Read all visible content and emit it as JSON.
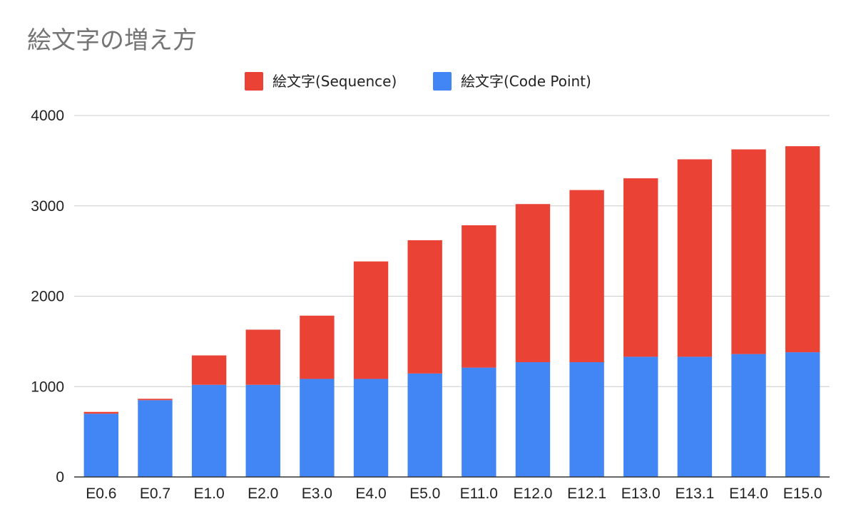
{
  "chart_data": {
    "type": "bar",
    "stacked": true,
    "title": "絵文字の増え方",
    "xlabel": "",
    "ylabel": "",
    "ylim": [
      0,
      4000
    ],
    "yticks": [
      0,
      1000,
      2000,
      3000,
      4000
    ],
    "grid": true,
    "legend_position": "top",
    "categories": [
      "E0.6",
      "E0.7",
      "E1.0",
      "E2.0",
      "E3.0",
      "E4.0",
      "E5.0",
      "E11.0",
      "E12.0",
      "E12.1",
      "E13.0",
      "E13.1",
      "E14.0",
      "E15.0"
    ],
    "series": [
      {
        "name": "絵文字(Sequence)",
        "color": "#ea4335",
        "values": [
          20,
          15,
          325,
          610,
          700,
          1300,
          1475,
          1575,
          1750,
          1905,
          1975,
          2185,
          2265,
          2280
        ]
      },
      {
        "name": "絵文字(Code Point)",
        "color": "#4285f4",
        "values": [
          700,
          850,
          1020,
          1020,
          1085,
          1085,
          1145,
          1210,
          1270,
          1270,
          1330,
          1330,
          1360,
          1380
        ]
      }
    ],
    "stack_order": [
      "絵文字(Code Point)",
      "絵文字(Sequence)"
    ]
  }
}
